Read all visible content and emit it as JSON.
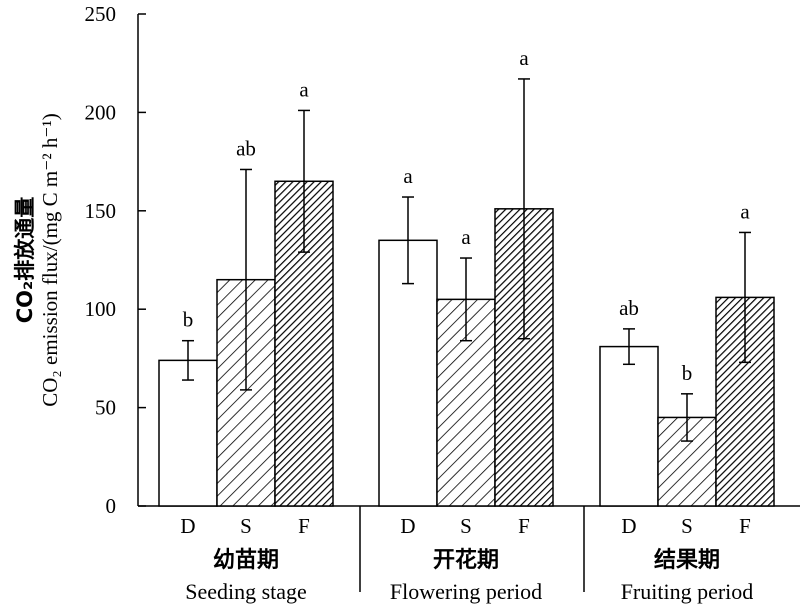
{
  "chart_data": {
    "type": "bar",
    "ylabel_cn": "CO₂排放通量",
    "ylabel_en": "CO₂ emission flux/(mg C m⁻² h⁻¹)",
    "ylim": [
      0,
      250
    ],
    "yticks": [
      "0",
      "50",
      "100",
      "150",
      "200",
      "250"
    ],
    "treatments": [
      "D",
      "S",
      "F"
    ],
    "groups": [
      {
        "name_cn": "幼苗期",
        "name_en": "Seeding stage",
        "values": [
          74,
          115,
          165
        ],
        "errors": [
          10,
          56,
          36
        ],
        "letters": [
          "b",
          "ab",
          "a"
        ]
      },
      {
        "name_cn": "开花期",
        "name_en": "Flowering period",
        "values": [
          135,
          105,
          151
        ],
        "errors": [
          22,
          21,
          66
        ],
        "letters": [
          "a",
          "a",
          "a"
        ]
      },
      {
        "name_cn": "结果期",
        "name_en": "Fruiting period",
        "values": [
          81,
          45,
          106
        ],
        "errors": [
          9,
          12,
          33
        ],
        "letters": [
          "ab",
          "b",
          "a"
        ]
      }
    ],
    "fills": [
      "white",
      "sparse-hatch",
      "dense-hatch"
    ],
    "legend": "none",
    "grid": false
  }
}
